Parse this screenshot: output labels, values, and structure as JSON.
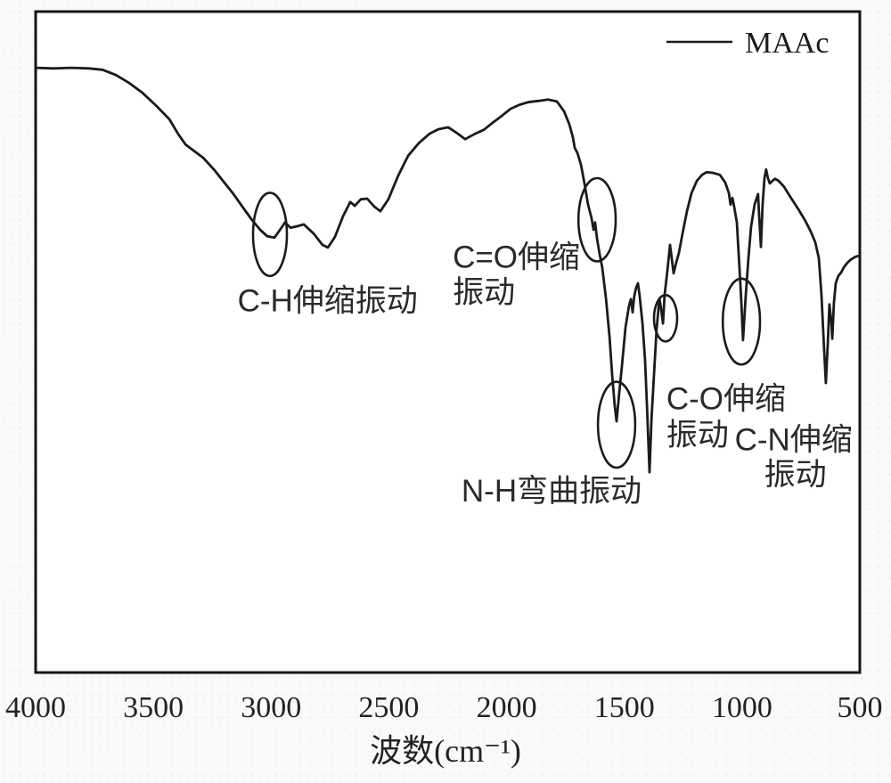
{
  "figure_kind": "FTIR infrared transmittance spectrum",
  "chart_data": {
    "type": "line",
    "title": "",
    "xlabel": "波数(cm⁻¹)",
    "ylabel": "",
    "grid": false,
    "x_axis": {
      "max": 4000,
      "min": 500,
      "reversed": true,
      "ticks": [
        4000,
        3500,
        3000,
        2500,
        2000,
        1500,
        1000,
        500
      ]
    },
    "y_axis": {
      "min": 0,
      "max": 100,
      "ticks": [],
      "note": "unlabeled transmittance axis"
    },
    "legend": {
      "label": "MAAc",
      "position": "top-right"
    },
    "series": [
      {
        "name": "MAAc",
        "color": "#1b1b1b",
        "points": [
          [
            4000,
            91.5
          ],
          [
            3924,
            91.4
          ],
          [
            3849,
            91.5
          ],
          [
            3773,
            91.4
          ],
          [
            3716,
            91.2
          ],
          [
            3659,
            90.4
          ],
          [
            3603,
            89.2
          ],
          [
            3546,
            87.7
          ],
          [
            3489,
            85.8
          ],
          [
            3432,
            83.7
          ],
          [
            3395,
            81.5
          ],
          [
            3364,
            79.9
          ],
          [
            3334,
            79.1
          ],
          [
            3289,
            77.9
          ],
          [
            3243,
            76.1
          ],
          [
            3198,
            74.1
          ],
          [
            3160,
            72.4
          ],
          [
            3122,
            70.5
          ],
          [
            3084,
            68.6
          ],
          [
            3047,
            67.0
          ],
          [
            3016,
            66.0
          ],
          [
            2986,
            65.8
          ],
          [
            2960,
            67.1
          ],
          [
            2941,
            68.1
          ],
          [
            2918,
            67.3
          ],
          [
            2891,
            67.5
          ],
          [
            2861,
            67.8
          ],
          [
            2819,
            66.4
          ],
          [
            2782,
            64.7
          ],
          [
            2759,
            64.3
          ],
          [
            2729,
            65.9
          ],
          [
            2695,
            69.0
          ],
          [
            2664,
            71.2
          ],
          [
            2645,
            70.6
          ],
          [
            2619,
            71.6
          ],
          [
            2592,
            71.7
          ],
          [
            2562,
            70.5
          ],
          [
            2536,
            69.8
          ],
          [
            2502,
            71.6
          ],
          [
            2460,
            75.2
          ],
          [
            2418,
            78.2
          ],
          [
            2373,
            80.1
          ],
          [
            2328,
            81.5
          ],
          [
            2290,
            82.2
          ],
          [
            2248,
            82.5
          ],
          [
            2214,
            81.7
          ],
          [
            2176,
            80.7
          ],
          [
            2135,
            81.5
          ],
          [
            2097,
            82.1
          ],
          [
            2059,
            83.2
          ],
          [
            2021,
            84.2
          ],
          [
            1983,
            85.3
          ],
          [
            1945,
            85.9
          ],
          [
            1908,
            86.3
          ],
          [
            1862,
            86.5
          ],
          [
            1824,
            86.7
          ],
          [
            1786,
            86.4
          ],
          [
            1756,
            84.9
          ],
          [
            1733,
            82.9
          ],
          [
            1718,
            80.9
          ],
          [
            1711,
            79.4
          ],
          [
            1699,
            78.6
          ],
          [
            1684,
            76.8
          ],
          [
            1669,
            73.9
          ],
          [
            1654,
            70.8
          ],
          [
            1639,
            68.7
          ],
          [
            1631,
            67.0
          ],
          [
            1624,
            68.1
          ],
          [
            1616,
            65.6
          ],
          [
            1605,
            63.3
          ],
          [
            1594,
            61.3
          ],
          [
            1578,
            56.6
          ],
          [
            1563,
            50.8
          ],
          [
            1552,
            45.1
          ],
          [
            1541,
            40.4
          ],
          [
            1533,
            38.0
          ],
          [
            1522,
            42.2
          ],
          [
            1510,
            46.5
          ],
          [
            1495,
            52.2
          ],
          [
            1480,
            55.5
          ],
          [
            1472,
            56.5
          ],
          [
            1465,
            54.5
          ],
          [
            1458,
            56.9
          ],
          [
            1450,
            58.2
          ],
          [
            1442,
            58.9
          ],
          [
            1435,
            57.0
          ],
          [
            1423,
            52.8
          ],
          [
            1412,
            47.2
          ],
          [
            1404,
            40.4
          ],
          [
            1393,
            30.3
          ],
          [
            1385,
            38.1
          ],
          [
            1374,
            45.1
          ],
          [
            1363,
            51.9
          ],
          [
            1351,
            56.6
          ],
          [
            1344,
            55.1
          ],
          [
            1336,
            52.8
          ],
          [
            1329,
            57.1
          ],
          [
            1317,
            60.9
          ],
          [
            1306,
            64.7
          ],
          [
            1298,
            62.5
          ],
          [
            1291,
            60.4
          ],
          [
            1280,
            62.0
          ],
          [
            1268,
            63.5
          ],
          [
            1253,
            66.4
          ],
          [
            1234,
            69.8
          ],
          [
            1215,
            72.5
          ],
          [
            1192,
            74.4
          ],
          [
            1170,
            75.3
          ],
          [
            1151,
            75.7
          ],
          [
            1124,
            75.6
          ],
          [
            1094,
            75.3
          ],
          [
            1071,
            74.1
          ],
          [
            1056,
            72.5
          ],
          [
            1049,
            70.8
          ],
          [
            1041,
            71.8
          ],
          [
            1033,
            70.4
          ],
          [
            1022,
            68.1
          ],
          [
            1011,
            61.3
          ],
          [
            1003,
            55.9
          ],
          [
            996,
            50.3
          ],
          [
            984,
            57.3
          ],
          [
            973,
            62.7
          ],
          [
            962,
            67.4
          ],
          [
            947,
            70.8
          ],
          [
            932,
            72.4
          ],
          [
            928,
            69.4
          ],
          [
            920,
            64.4
          ],
          [
            913,
            70.8
          ],
          [
            905,
            74.8
          ],
          [
            898,
            76.1
          ],
          [
            890,
            74.8
          ],
          [
            882,
            74.0
          ],
          [
            871,
            74.4
          ],
          [
            860,
            74.7
          ],
          [
            845,
            74.4
          ],
          [
            822,
            73.5
          ],
          [
            792,
            71.8
          ],
          [
            761,
            70.1
          ],
          [
            731,
            68.3
          ],
          [
            708,
            66.7
          ],
          [
            689,
            65.1
          ],
          [
            674,
            62.7
          ],
          [
            663,
            57.3
          ],
          [
            652,
            49.2
          ],
          [
            644,
            43.8
          ],
          [
            636,
            49.9
          ],
          [
            629,
            55.7
          ],
          [
            621,
            53.0
          ],
          [
            617,
            50.5
          ],
          [
            610,
            55.9
          ],
          [
            602,
            58.9
          ],
          [
            591,
            60.0
          ],
          [
            580,
            60.5
          ],
          [
            568,
            61.3
          ],
          [
            553,
            62.0
          ],
          [
            538,
            62.5
          ],
          [
            519,
            62.9
          ],
          [
            500,
            63.1
          ]
        ]
      }
    ],
    "annotations": {
      "labels": [
        {
          "key": "c-h-stretch",
          "text": "C-H伸缩振动",
          "wn": 2760,
          "t": 55.9,
          "align": "center"
        },
        {
          "key": "c-o-double-stretch-line1",
          "text": "C=O伸缩",
          "wn": 2229,
          "t": 62.5,
          "align": "left"
        },
        {
          "key": "c-o-double-stretch-line2",
          "text": "振动",
          "wn": 2229,
          "t": 57.2,
          "align": "left"
        },
        {
          "key": "n-h-bend",
          "text": "N-H弯曲振动",
          "wn": 1809,
          "t": 27.1,
          "align": "center"
        },
        {
          "key": "c-o-stretch-line1",
          "text": "C-O伸缩",
          "wn": 1068,
          "t": 41.1,
          "align": "center"
        },
        {
          "key": "c-o-stretch-line2",
          "text": "振动",
          "wn": 1189,
          "t": 35.6,
          "align": "center"
        },
        {
          "key": "c-n-stretch-line1",
          "text": "C-N伸缩",
          "wn": 781,
          "t": 34.9,
          "align": "center"
        },
        {
          "key": "c-n-stretch-line2",
          "text": "振动",
          "wn": 774,
          "t": 29.6,
          "align": "center"
        }
      ],
      "ellipses": [
        {
          "key": "c-h-stretch",
          "wn": 3005,
          "t": 66.3,
          "rw": 72,
          "rt": 6.3
        },
        {
          "key": "c-o-double-stretch",
          "wn": 1616,
          "t": 68.5,
          "rw": 79,
          "rt": 6.3
        },
        {
          "key": "n-h-bend",
          "wn": 1533,
          "t": 37.5,
          "rw": 79,
          "rt": 6.5
        },
        {
          "key": "c-o-stretch",
          "wn": 1325,
          "t": 53.6,
          "rw": 49,
          "rt": 3.5
        },
        {
          "key": "c-n-stretch",
          "wn": 1003,
          "t": 53.1,
          "rw": 79,
          "rt": 6.5
        }
      ]
    }
  }
}
